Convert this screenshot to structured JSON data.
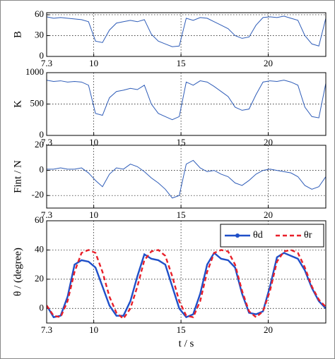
{
  "chart_data": [
    {
      "type": "line",
      "ylabel": "B",
      "x": [
        7.3,
        7.7,
        8.1,
        8.5,
        8.9,
        9.3,
        9.7,
        10.1,
        10.5,
        10.9,
        11.3,
        11.7,
        12.1,
        12.5,
        12.9,
        13.3,
        13.7,
        14.1,
        14.5,
        14.9,
        15.3,
        15.7,
        16.1,
        16.5,
        16.9,
        17.3,
        17.7,
        18.1,
        18.5,
        18.9,
        19.3,
        19.7,
        20.1,
        20.5,
        20.9,
        21.3,
        21.7,
        22.1,
        22.5,
        22.9,
        23.3
      ],
      "series": [
        {
          "color": "#2e5cb8",
          "values": [
            57,
            55,
            56,
            55,
            54,
            53,
            50,
            22,
            20,
            38,
            48,
            50,
            52,
            50,
            53,
            32,
            22,
            18,
            14,
            15,
            55,
            52,
            56,
            55,
            50,
            45,
            40,
            30,
            26,
            28,
            45,
            56,
            57,
            56,
            58,
            55,
            52,
            30,
            18,
            15,
            55
          ]
        }
      ],
      "xlim": [
        7.3,
        23.3
      ],
      "ylim": [
        0,
        63
      ],
      "xticks": [
        7.3,
        10,
        15,
        20
      ],
      "yticks": [
        0,
        30,
        60
      ],
      "grid": true
    },
    {
      "type": "line",
      "ylabel": "K",
      "x": [
        7.3,
        7.7,
        8.1,
        8.5,
        8.9,
        9.3,
        9.7,
        10.1,
        10.5,
        10.9,
        11.3,
        11.7,
        12.1,
        12.5,
        12.9,
        13.3,
        13.7,
        14.1,
        14.5,
        14.9,
        15.3,
        15.7,
        16.1,
        16.5,
        16.9,
        17.3,
        17.7,
        18.1,
        18.5,
        18.9,
        19.3,
        19.7,
        20.1,
        20.5,
        20.9,
        21.3,
        21.7,
        22.1,
        22.5,
        22.9,
        23.3
      ],
      "series": [
        {
          "color": "#2e5cb8",
          "values": [
            880,
            860,
            870,
            850,
            860,
            850,
            800,
            350,
            320,
            600,
            700,
            720,
            750,
            730,
            800,
            500,
            350,
            300,
            250,
            300,
            850,
            800,
            870,
            850,
            780,
            700,
            620,
            450,
            400,
            420,
            650,
            850,
            870,
            860,
            880,
            850,
            800,
            450,
            300,
            280,
            830
          ]
        }
      ],
      "xlim": [
        7.3,
        23.3
      ],
      "ylim": [
        0,
        1000
      ],
      "xticks": [
        7.3,
        10,
        15,
        20
      ],
      "yticks": [
        0,
        500,
        1000
      ],
      "grid": true
    },
    {
      "type": "line",
      "ylabel": "Fint / N",
      "x": [
        7.3,
        7.7,
        8.1,
        8.5,
        8.9,
        9.3,
        9.7,
        10.1,
        10.5,
        10.9,
        11.3,
        11.7,
        12.1,
        12.5,
        12.9,
        13.3,
        13.7,
        14.1,
        14.5,
        14.9,
        15.3,
        15.7,
        16.1,
        16.5,
        16.9,
        17.3,
        17.7,
        18.1,
        18.5,
        18.9,
        19.3,
        19.7,
        20.1,
        20.5,
        20.9,
        21.3,
        21.7,
        22.1,
        22.5,
        22.9,
        23.3
      ],
      "series": [
        {
          "color": "#2e5cb8",
          "values": [
            1,
            1,
            2,
            1,
            1,
            2,
            -2,
            -8,
            -13,
            -3,
            2,
            1,
            5,
            3,
            -1,
            -6,
            -10,
            -15,
            -22,
            -20,
            5,
            8,
            2,
            -1,
            0,
            -3,
            -5,
            -10,
            -12,
            -8,
            -3,
            0,
            1,
            0,
            -1,
            -2,
            -5,
            -12,
            -15,
            -13,
            -5
          ]
        }
      ],
      "xlim": [
        7.3,
        23.3
      ],
      "ylim": [
        -30,
        20
      ],
      "xticks": [
        7.3,
        10,
        15,
        20
      ],
      "yticks": [
        -20,
        0,
        20
      ],
      "grid": true
    },
    {
      "type": "line",
      "ylabel": "θ / (degree)",
      "xlabel": "t / s",
      "x": [
        7.3,
        7.7,
        8.1,
        8.5,
        8.9,
        9.3,
        9.7,
        10.1,
        10.5,
        10.9,
        11.3,
        11.7,
        12.1,
        12.5,
        12.9,
        13.3,
        13.7,
        14.1,
        14.5,
        14.9,
        15.3,
        15.7,
        16.1,
        16.5,
        16.9,
        17.3,
        17.7,
        18.1,
        18.5,
        18.9,
        19.3,
        19.7,
        20.1,
        20.5,
        20.9,
        21.3,
        21.7,
        22.1,
        22.5,
        22.9,
        23.3
      ],
      "series": [
        {
          "name": "θd",
          "color": "#1f4fc8",
          "dashed": false,
          "values": [
            2,
            -6,
            -5,
            8,
            30,
            33,
            32,
            28,
            15,
            2,
            -5,
            -5,
            5,
            22,
            37,
            34,
            33,
            30,
            15,
            0,
            -6,
            -4,
            10,
            30,
            38,
            34,
            33,
            28,
            10,
            -3,
            -4,
            -2,
            15,
            35,
            38,
            36,
            34,
            26,
            14,
            5,
            0
          ]
        },
        {
          "name": "θr",
          "color": "#e8202a",
          "dashed": true,
          "values": [
            2,
            -5,
            -6,
            5,
            25,
            38,
            40,
            38,
            25,
            8,
            -3,
            -7,
            0,
            15,
            33,
            39,
            40,
            36,
            22,
            5,
            -5,
            -6,
            5,
            25,
            38,
            40,
            39,
            30,
            12,
            -2,
            -6,
            -2,
            12,
            32,
            39,
            40,
            38,
            28,
            15,
            6,
            1
          ]
        }
      ],
      "xlim": [
        7.3,
        23.3
      ],
      "ylim": [
        -10,
        60
      ],
      "xticks": [
        7.3,
        10,
        15,
        20
      ],
      "yticks": [
        0,
        20,
        40,
        60
      ],
      "grid": true,
      "legend": "upper right"
    }
  ]
}
